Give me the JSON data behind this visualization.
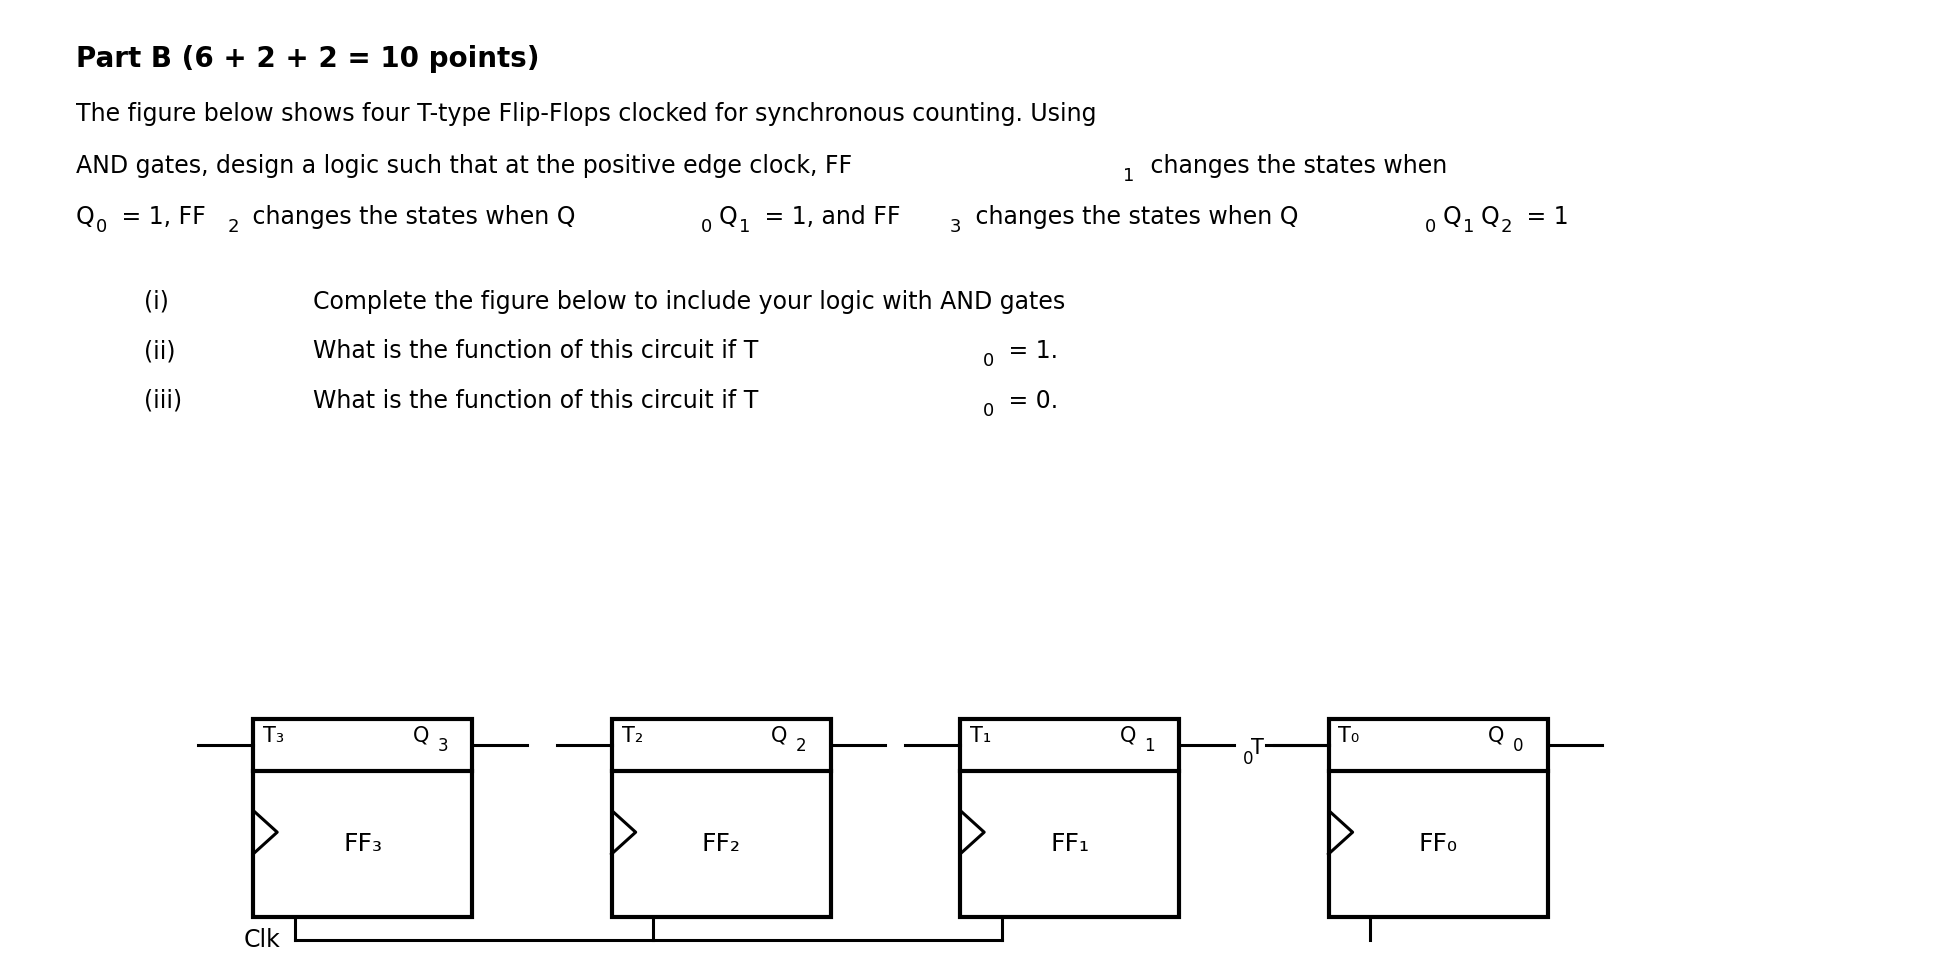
{
  "bg_color": "#ffffff",
  "line_color": "#000000",
  "title": "Part B (6 + 2 + 2 = 10 points)",
  "body_line1": "The figure below shows four T-type Flip-Flops clocked for synchronous counting. Using",
  "body_line2": "AND gates, design a logic such that at the positive edge clock, FF",
  "body_line2b": " changes the states when",
  "body_line3": "Q",
  "body_line3b": " = 1, FF",
  "body_line3c": " changes the states when Q",
  "body_line3d": "Q",
  "body_line3e": " = 1, and FF",
  "body_line3f": "3 changes the states when Q",
  "body_line3g": "Q",
  "body_line3h": "Q",
  "body_line3i": " = 1",
  "item_i": "Complete the figure below to include your logic with AND gates",
  "item_ii": "What is the function of this circuit if T",
  "item_ii_b": " = 1.",
  "item_iii": "What is the function of this circuit if T",
  "item_iii_b": " = 0.",
  "ff_names": [
    "FF₃",
    "FF₂",
    "FF₁",
    "FF₀"
  ],
  "T_labels": [
    "T₃",
    "T₂",
    "T₁",
    "T₀"
  ],
  "Q_labels": [
    "Q3",
    "Q2",
    "Q1",
    "Q0"
  ],
  "font_size_title": 20,
  "font_size_body": 17,
  "font_size_item": 17,
  "font_size_ff_label": 15,
  "font_size_ff_name": 18
}
